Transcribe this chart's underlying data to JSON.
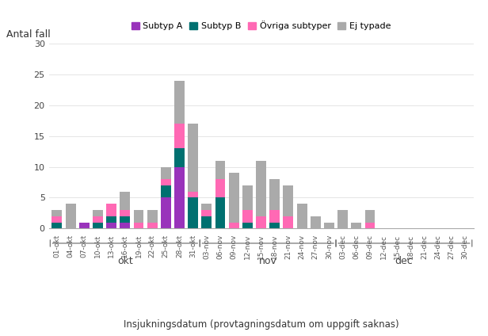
{
  "dates": [
    "01-okt",
    "04-okt",
    "07-okt",
    "10-okt",
    "13-okt",
    "16-okt",
    "19-okt",
    "22-okt",
    "25-okt",
    "28-okt",
    "31-okt",
    "03-nov",
    "06-nov",
    "09-nov",
    "12-nov",
    "15-nov",
    "18-nov",
    "21-nov",
    "24-nov",
    "27-nov",
    "30-nov",
    "03-dec",
    "06-dec",
    "09-dec",
    "12-dec",
    "15-dec",
    "18-dec",
    "21-dec",
    "24-dec",
    "27-dec",
    "30-dec"
  ],
  "subtyp_a": [
    0,
    0,
    1,
    0,
    1,
    1,
    0,
    0,
    5,
    10,
    0,
    0,
    0,
    0,
    0,
    0,
    0,
    0,
    0,
    0,
    0,
    0,
    0,
    0,
    0,
    0,
    0,
    0,
    0,
    0,
    0
  ],
  "subtyp_b": [
    1,
    0,
    0,
    1,
    1,
    1,
    0,
    0,
    2,
    3,
    5,
    2,
    5,
    0,
    1,
    0,
    1,
    0,
    0,
    0,
    0,
    0,
    0,
    0,
    0,
    0,
    0,
    0,
    0,
    0,
    0
  ],
  "ovriga": [
    1,
    0,
    0,
    1,
    2,
    1,
    1,
    1,
    1,
    4,
    1,
    1,
    3,
    1,
    2,
    2,
    2,
    2,
    0,
    0,
    0,
    0,
    0,
    1,
    0,
    0,
    0,
    0,
    0,
    0,
    0
  ],
  "ej_typade": [
    1,
    4,
    0,
    1,
    0,
    3,
    2,
    2,
    2,
    7,
    11,
    1,
    3,
    8,
    4,
    9,
    5,
    5,
    4,
    2,
    1,
    3,
    1,
    2,
    0,
    0,
    0,
    0,
    0,
    0,
    0
  ],
  "month_groups": [
    {
      "label": "okt",
      "start": 0,
      "end": 10
    },
    {
      "label": "nov",
      "start": 11,
      "end": 20
    },
    {
      "label": "dec",
      "start": 21,
      "end": 30
    }
  ],
  "color_subtyp_a": "#9933BB",
  "color_subtyp_b": "#007070",
  "color_ovriga": "#FF69B4",
  "color_ej_typade": "#AAAAAA",
  "ylabel": "Antal fall",
  "xlabel": "Insjukningsdatum (provtagningsdatum om uppgift saknas)",
  "ylim": [
    0,
    30
  ],
  "yticks": [
    0,
    5,
    10,
    15,
    20,
    25,
    30
  ],
  "legend_labels": [
    "Subtyp A",
    "Subtyp B",
    "Övriga subtyper",
    "Ej typade"
  ],
  "background_color": "#ffffff"
}
